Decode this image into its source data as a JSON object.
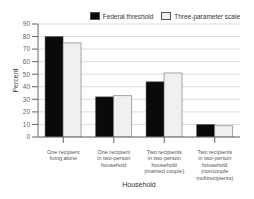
{
  "chart_data": {
    "type": "bar",
    "categories": [
      "One recipient\nliving alone",
      "One recipient\nin two-person\nhousehold",
      "Two recipients\nin two-person\nhousehold\n(married couple)",
      "Two recipients\nin two-person\nhousehold\n(noncouple\nmultirecipients)"
    ],
    "series": [
      {
        "name": "Federal threshold",
        "color": "#0a0a0a",
        "values": [
          80,
          32,
          44,
          10
        ]
      },
      {
        "name": "Three-parameter scale",
        "color": "#f0f0f0",
        "values": [
          75,
          33,
          51,
          9
        ]
      }
    ],
    "xlabel": "Household",
    "ylabel": "Percent",
    "ylim": [
      0,
      90
    ],
    "yticks": [
      0,
      10,
      20,
      30,
      40,
      50,
      60,
      70,
      80,
      90
    ],
    "grid": true,
    "legend": "upper right"
  }
}
